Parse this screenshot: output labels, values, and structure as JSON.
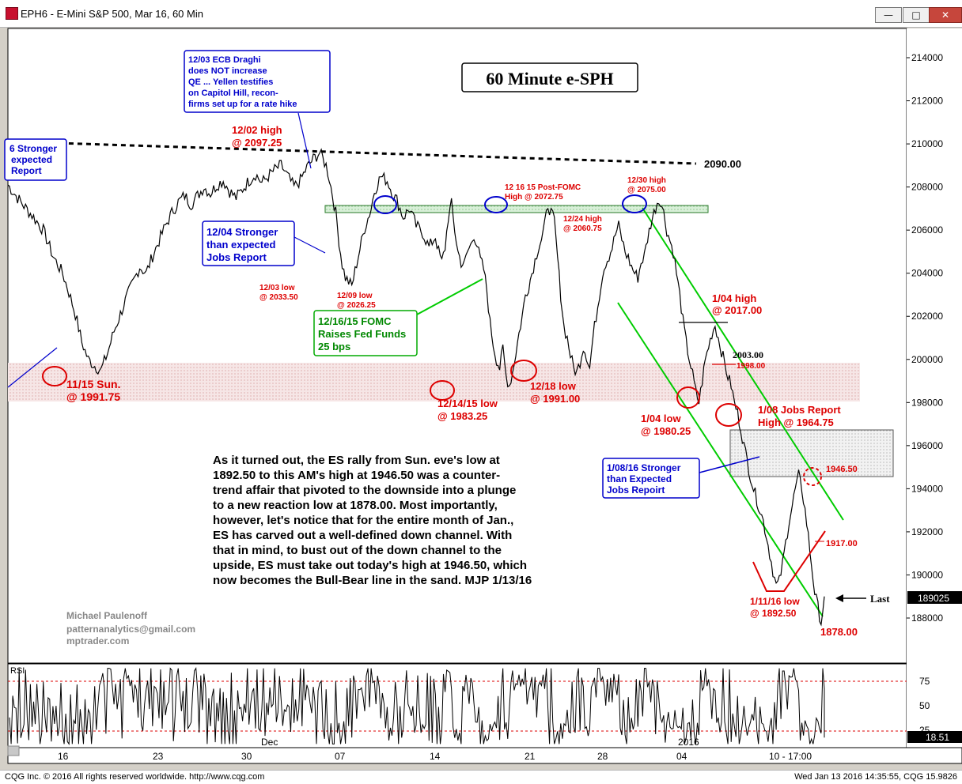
{
  "window": {
    "title": "EPH6 - E-Mini S&P 500, Mar 16, 60 Min",
    "buttons": [
      "minimize",
      "maximize",
      "close"
    ]
  },
  "status_bar": {
    "left": "CQG Inc. © 2016 All rights reserved worldwide. http://www.cqg.com",
    "right": "Wed Jan 13 2016 14:35:55, CQG 15.9826"
  },
  "chart_data": {
    "type": "line",
    "title": "60 Minute e-SPH",
    "series": [
      {
        "name": "EPH6"
      }
    ],
    "x_tick_labels": [
      "16",
      "23",
      "30",
      "07",
      "14",
      "21",
      "28",
      "04",
      "10 - 17:00"
    ],
    "x_month_labels": [
      "Dec",
      "2016"
    ],
    "y_tick_values": [
      188000,
      190000,
      192000,
      194000,
      196000,
      198000,
      200000,
      202000,
      204000,
      206000,
      208000,
      210000,
      212000,
      214000
    ],
    "ylim": [
      186500,
      215500
    ],
    "last_value": "189025",
    "price_path": [
      [
        0,
        2081
      ],
      [
        4,
        2073
      ],
      [
        8,
        2066
      ],
      [
        11,
        2060
      ],
      [
        14,
        2048
      ],
      [
        17,
        2040
      ],
      [
        19,
        2031
      ],
      [
        21,
        2021
      ],
      [
        23,
        2008
      ],
      [
        25,
        2000
      ],
      [
        27,
        1997
      ],
      [
        29,
        1995
      ],
      [
        31,
        2003
      ],
      [
        33,
        2013
      ],
      [
        35,
        2021
      ],
      [
        37,
        2029
      ],
      [
        39,
        2036
      ],
      [
        41,
        2043
      ],
      [
        43,
        2040
      ],
      [
        45,
        2048
      ],
      [
        47,
        2055
      ],
      [
        49,
        2062
      ],
      [
        51,
        2068
      ],
      [
        53,
        2073
      ],
      [
        55,
        2076
      ],
      [
        57,
        2072
      ],
      [
        59,
        2076
      ],
      [
        61,
        2080
      ],
      [
        63,
        2077
      ],
      [
        65,
        2081
      ],
      [
        67,
        2083
      ],
      [
        69,
        2078
      ],
      [
        71,
        2075
      ],
      [
        73,
        2079
      ],
      [
        75,
        2083
      ],
      [
        77,
        2086
      ],
      [
        79,
        2082
      ],
      [
        81,
        2085
      ],
      [
        83,
        2088
      ],
      [
        85,
        2090
      ],
      [
        87,
        2085
      ],
      [
        89,
        2080
      ],
      [
        91,
        2083
      ],
      [
        93,
        2089
      ],
      [
        95,
        2093
      ],
      [
        97,
        2096
      ],
      [
        99,
        2090
      ],
      [
        100,
        2084
      ],
      [
        101,
        2076
      ],
      [
        102,
        2068
      ],
      [
        103,
        2055
      ],
      [
        104,
        2044
      ],
      [
        105,
        2038
      ],
      [
        107,
        2034
      ],
      [
        109,
        2048
      ],
      [
        111,
        2061
      ],
      [
        113,
        2070
      ],
      [
        114,
        2078
      ],
      [
        116,
        2085
      ],
      [
        118,
        2083
      ],
      [
        120,
        2076
      ],
      [
        121,
        2074
      ],
      [
        123,
        2066
      ],
      [
        125,
        2070
      ],
      [
        127,
        2062
      ],
      [
        129,
        2059
      ],
      [
        131,
        2052
      ],
      [
        133,
        2057
      ],
      [
        134,
        2050
      ],
      [
        135,
        2045
      ],
      [
        136,
        2052
      ],
      [
        137,
        2066
      ],
      [
        138,
        2072
      ],
      [
        139,
        2060
      ],
      [
        140,
        2050
      ],
      [
        141,
        2045
      ],
      [
        142,
        2044
      ],
      [
        143,
        2050
      ],
      [
        144,
        2053
      ],
      [
        145,
        2058
      ],
      [
        146,
        2053
      ],
      [
        147,
        2046
      ],
      [
        148,
        2042
      ],
      [
        149,
        2032
      ],
      [
        150,
        2017
      ],
      [
        151,
        2007
      ],
      [
        152,
        2000
      ],
      [
        153,
        1996
      ],
      [
        154,
        2005
      ],
      [
        155,
        1992
      ],
      [
        156,
        1988
      ],
      [
        157,
        1994
      ],
      [
        158,
        2003
      ],
      [
        159,
        2012
      ],
      [
        160,
        2020
      ],
      [
        161,
        2030
      ],
      [
        162,
        2034
      ],
      [
        163,
        2040
      ],
      [
        164,
        2046
      ],
      [
        165,
        2052
      ],
      [
        166,
        2056
      ],
      [
        167,
        2062
      ],
      [
        168,
        2072
      ],
      [
        169,
        2068
      ],
      [
        170,
        2064
      ],
      [
        171,
        2047
      ],
      [
        172,
        2030
      ],
      [
        173,
        2015
      ],
      [
        174,
        2010
      ],
      [
        175,
        2002
      ],
      [
        176,
        1996
      ],
      [
        177,
        1994
      ],
      [
        178,
        1999
      ],
      [
        179,
        2006
      ],
      [
        180,
        2002
      ],
      [
        181,
        1996
      ],
      [
        182,
        2010
      ],
      [
        183,
        2020
      ],
      [
        184,
        2030
      ],
      [
        185,
        2040
      ],
      [
        186,
        2045
      ],
      [
        187,
        2048
      ],
      [
        188,
        2052
      ],
      [
        189,
        2058
      ],
      [
        190,
        2062
      ],
      [
        191,
        2056
      ],
      [
        192,
        2050
      ],
      [
        193,
        2047
      ],
      [
        194,
        2043
      ],
      [
        195,
        2040
      ],
      [
        196,
        2038
      ],
      [
        197,
        2045
      ],
      [
        198,
        2048
      ],
      [
        199,
        2056
      ],
      [
        200,
        2063
      ],
      [
        201,
        2068
      ],
      [
        202,
        2073
      ],
      [
        203,
        2074
      ],
      [
        204,
        2068
      ],
      [
        205,
        2060
      ],
      [
        206,
        2055
      ],
      [
        207,
        2050
      ],
      [
        208,
        2040
      ],
      [
        209,
        2030
      ],
      [
        210,
        2018
      ],
      [
        211,
        2008
      ],
      [
        212,
        2000
      ],
      [
        213,
        1993
      ],
      [
        214,
        1985
      ],
      [
        215,
        1980
      ],
      [
        216,
        1990
      ],
      [
        217,
        2000
      ],
      [
        218,
        2006
      ],
      [
        219,
        2012
      ],
      [
        220,
        2016
      ],
      [
        221,
        2010
      ],
      [
        222,
        2004
      ],
      [
        223,
        1998
      ],
      [
        224,
        1992
      ],
      [
        225,
        1988
      ],
      [
        226,
        1980
      ],
      [
        227,
        1975
      ],
      [
        228,
        1968
      ],
      [
        229,
        1960
      ],
      [
        230,
        1953
      ],
      [
        231,
        1946
      ],
      [
        232,
        1940
      ],
      [
        233,
        1935
      ],
      [
        234,
        1930
      ],
      [
        235,
        1925
      ],
      [
        236,
        1918
      ],
      [
        237,
        1910
      ],
      [
        238,
        1902
      ],
      [
        239,
        1895
      ],
      [
        240,
        1897
      ],
      [
        241,
        1905
      ],
      [
        242,
        1915
      ],
      [
        243,
        1925
      ],
      [
        244,
        1932
      ],
      [
        245,
        1940
      ],
      [
        246,
        1946
      ],
      [
        247,
        1940
      ],
      [
        248,
        1930
      ],
      [
        249,
        1918
      ],
      [
        250,
        1905
      ],
      [
        251,
        1892
      ],
      [
        252,
        1885
      ],
      [
        253,
        1878
      ],
      [
        254,
        1890
      ]
    ],
    "price_path_note": "",
    "rsi": {
      "label": "RSI",
      "ticks": [
        75,
        50,
        25
      ],
      "last": "18.51"
    },
    "levels": {
      "resistance_trend": "2090.00",
      "last_label": "Last"
    }
  },
  "chart_title": "60 Minute e-SPH",
  "annotations": {
    "ecb": [
      "12/03 ECB Draghi",
      "does NOT increase",
      "QE ... Yellen testifies",
      "on Capitol Hill, recon-",
      "firms set up for a rate hike"
    ],
    "left_box": [
      "6 Stronger",
      "expected",
      "Report"
    ],
    "jobs_1204": [
      "12/04 Stronger",
      "than expected",
      "Jobs Report"
    ],
    "fomc": [
      "12/16/15 FOMC",
      "Raises Fed Funds",
      "25 bps"
    ],
    "jobs_0108": [
      "1/08/16 Stronger",
      "than Expected",
      "Jobs Repoirt"
    ],
    "high_1202": [
      "12/02 high",
      "@ 2097.25"
    ],
    "postfomc": [
      "12 16 15 Post-FOMC",
      "High @ 2072.75"
    ],
    "high_1230": [
      "12/30 high",
      "@ 2075.00"
    ],
    "high_1224": [
      "12/24 high",
      "@ 2060.75"
    ],
    "low_1203": [
      "12/03 low",
      "@ 2033.50"
    ],
    "low_1209": [
      "12/09 low",
      "@ 2026.25"
    ],
    "high_0104": [
      "1/04 high",
      "@ 2017.00"
    ],
    "lvl_2003": "2003.00",
    "lvl_1998": "1998.00",
    "sun_1115": [
      "11/15 Sun.",
      "@ 1991.75"
    ],
    "low_1214": [
      "12/14/15 low",
      "@ 1983.25"
    ],
    "low_1218": [
      "12/18 low",
      "@ 1991.00"
    ],
    "low_0104": [
      "1/04 low",
      "@ 1980.25"
    ],
    "jobs_report_0108": [
      "1/08 Jobs Report",
      "High @ 1964.75"
    ],
    "lvl_1946": "1946.50",
    "lvl_1917": "1917.00",
    "low_0111": [
      "1/11/16 low",
      "@ 1892.50"
    ],
    "lvl_1878": "1878.00",
    "commentary": [
      "As it turned out, the ES rally from Sun. eve's low at",
      "1892.50 to this AM's high at 1946.50 was a counter-",
      "trend affair that pivoted to the downside into a plunge",
      "to a new reaction low at 1878.00. Most importantly,",
      "however, let's notice that for the entire month of Jan.,",
      "ES has carved out a well-defined down channel. With",
      "that in mind, to bust out of the down channel to the",
      "upside, ES must take out today's high at 1946.50, which",
      "now becomes the Bull-Bear line in the sand.  MJP 1/13/16"
    ],
    "signature": [
      "Michael Paulenoff",
      "patternanalytics@gmail.com",
      "mptrader.com"
    ]
  },
  "colors": {
    "price": "#000000",
    "annotation_red": "#dd0000",
    "annotation_blue": "#0000cc",
    "channel_green": "#00cc00",
    "zone_green": "#cfeecf"
  }
}
